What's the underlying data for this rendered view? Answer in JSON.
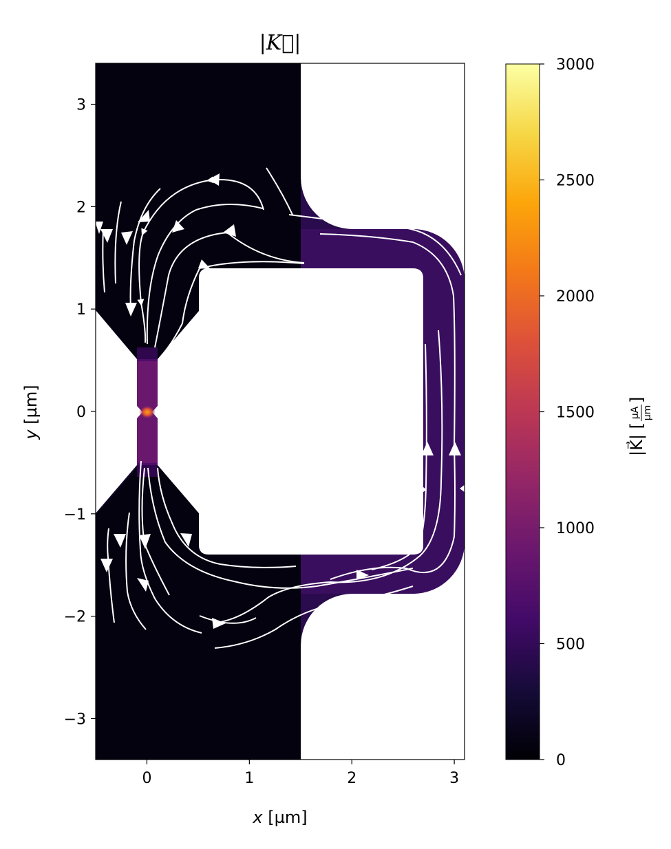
{
  "chart_data": {
    "type": "heatmap",
    "title": "|K⃗|",
    "xlabel_var": "x",
    "xlabel_unit": " [µm]",
    "ylabel_var": "y",
    "ylabel_unit": " [µm]",
    "xlim": [
      -0.5,
      3.1
    ],
    "ylim": [
      -3.4,
      3.4
    ],
    "x_ticks": [
      0,
      1,
      2,
      3
    ],
    "x_tick_labels": [
      "0",
      "1",
      "2",
      "3"
    ],
    "y_ticks": [
      -3,
      -2,
      -1,
      0,
      1,
      2,
      3
    ],
    "y_tick_labels": [
      "−3",
      "−2",
      "−1",
      "0",
      "1",
      "2",
      "3"
    ],
    "colorbar": {
      "label": "|K⃗| [µA/µm]",
      "label_prefix": "|K⃗| [",
      "label_unit_num": "µA",
      "label_unit_den": "µm",
      "label_suffix": "]",
      "range": [
        0,
        3000
      ],
      "ticks": [
        0,
        500,
        1000,
        1500,
        2000,
        2500,
        3000
      ],
      "tick_labels": [
        "0",
        "500",
        "1000",
        "1500",
        "2000",
        "2500",
        "3000"
      ],
      "colormap": "inferno"
    },
    "streamline_color": "#ffffff",
    "description_values": {
      "background_magnitude": 0,
      "ring_magnitude_approx": 600,
      "constriction_peak_approx": 2000
    }
  }
}
